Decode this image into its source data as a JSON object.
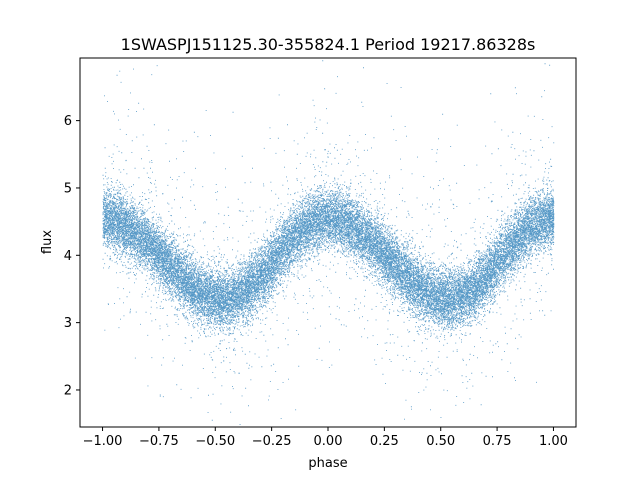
{
  "chart_data": {
    "type": "scatter",
    "title": "1SWASPJ151125.30-355824.1 Period 19217.86328s",
    "xlabel": "phase",
    "ylabel": "flux",
    "xlim": [
      -1.1,
      1.1
    ],
    "ylim": [
      1.45,
      6.93
    ],
    "xticks": [
      -1.0,
      -0.75,
      -0.5,
      -0.25,
      0.0,
      0.25,
      0.5,
      0.75,
      1.0
    ],
    "xtick_labels": [
      "−1.00",
      "−0.75",
      "−0.50",
      "−0.25",
      "0.00",
      "0.25",
      "0.50",
      "0.75",
      "1.00"
    ],
    "yticks": [
      2,
      3,
      4,
      5,
      6
    ],
    "ytick_labels": [
      "2",
      "3",
      "4",
      "5",
      "6"
    ],
    "grid": false,
    "marker_color": "#1f77b4",
    "light_curve": {
      "phase_range": [
        -1.0,
        1.0
      ],
      "mean_flux": 3.95,
      "amplitude": 0.6,
      "maxima_phase": [
        -1.0,
        0.0,
        1.0
      ],
      "minima_phase": [
        -0.47,
        0.53
      ],
      "minimum_flux": 3.35,
      "maximum_flux": 4.55,
      "scatter_sigma": 0.22,
      "approx_point_count": 30000
    }
  }
}
